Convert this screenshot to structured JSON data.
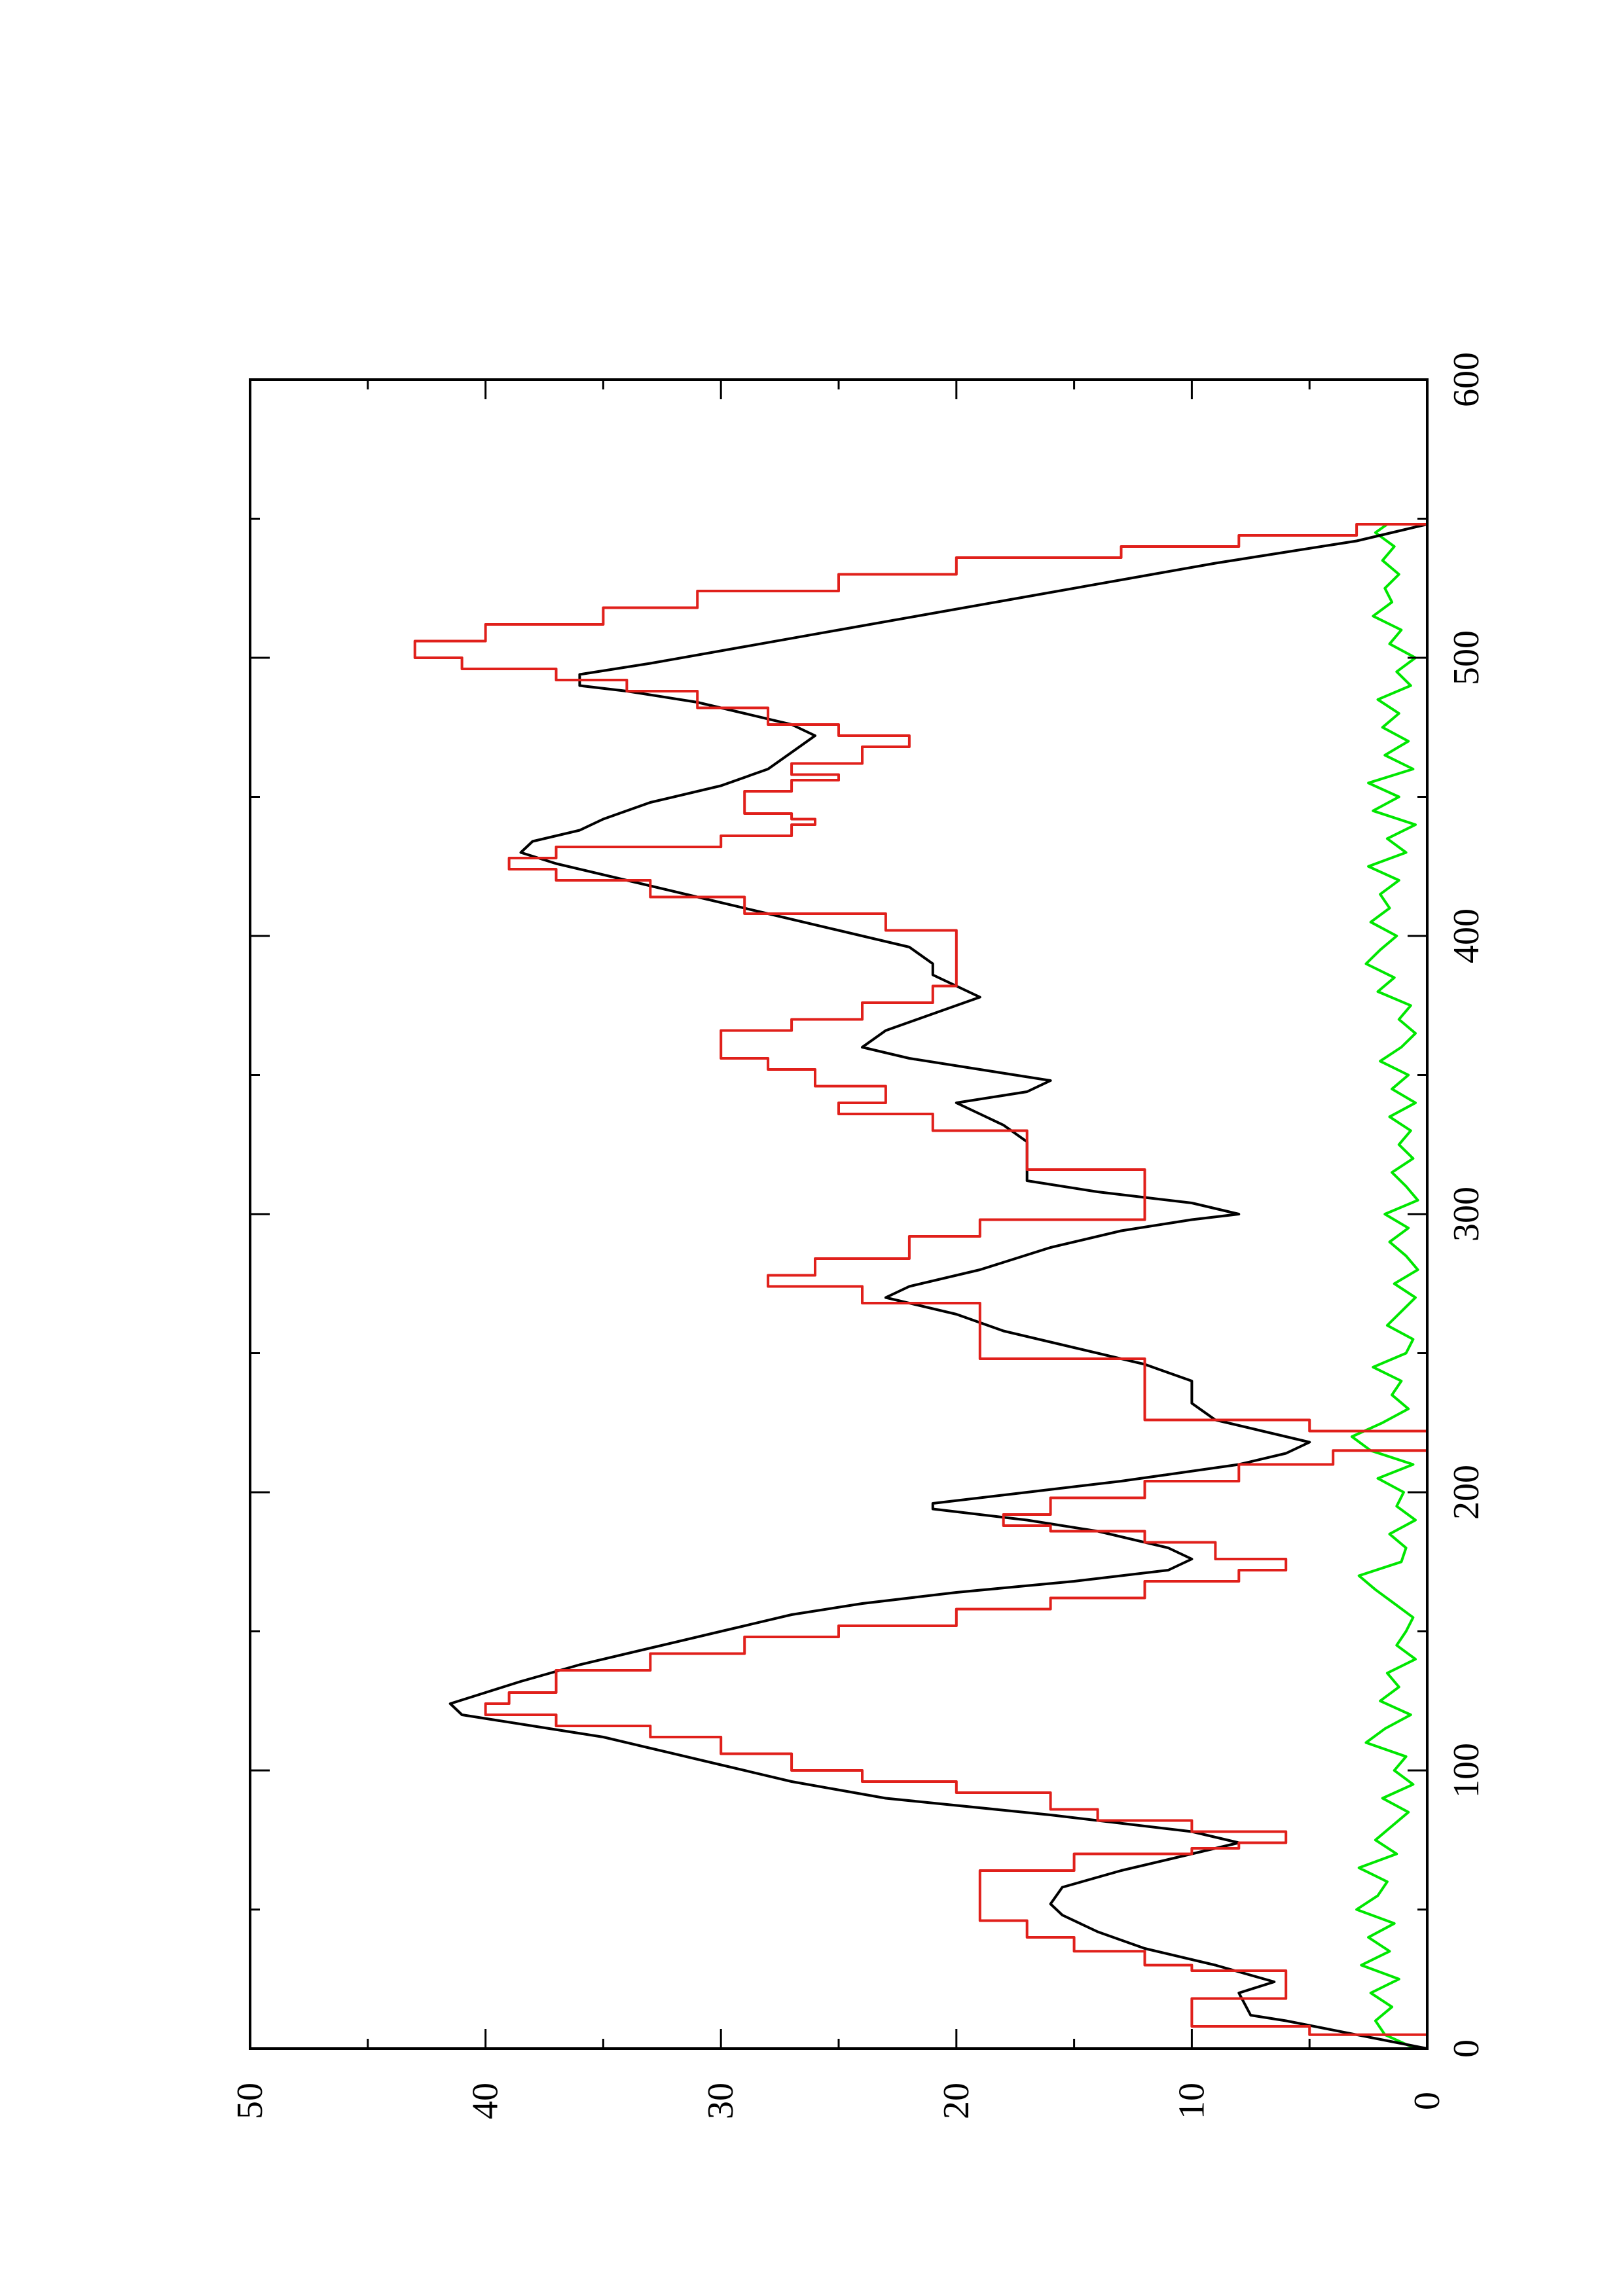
{
  "chart_data": {
    "type": "line",
    "orientation": "rotated-90-ccw",
    "title": "",
    "xlabel": "",
    "ylabel": "",
    "xlim": [
      0,
      600
    ],
    "ylim": [
      0,
      50
    ],
    "x_ticks": [
      0,
      100,
      200,
      300,
      400,
      500,
      600
    ],
    "x_tick_labels": [
      "0",
      "100",
      "200",
      "300",
      "400",
      "500",
      "600"
    ],
    "x_minor_ticks": [
      50,
      150,
      250,
      350,
      450,
      550
    ],
    "y_ticks": [
      0,
      10,
      20,
      30,
      40,
      50
    ],
    "y_tick_labels": [
      "0",
      "10",
      "20",
      "30",
      "40",
      "50"
    ],
    "y_minor_ticks": [
      5,
      15,
      25,
      35,
      45
    ],
    "grid": false,
    "legend": "none",
    "series": [
      {
        "color": "#000000",
        "style": "smooth",
        "points": [
          [
            0,
            0
          ],
          [
            5,
            3
          ],
          [
            10,
            6
          ],
          [
            12,
            7.5
          ],
          [
            20,
            8
          ],
          [
            24,
            6.5
          ],
          [
            30,
            9
          ],
          [
            36,
            12
          ],
          [
            42,
            14
          ],
          [
            48,
            15.5
          ],
          [
            52,
            16
          ],
          [
            58,
            15.5
          ],
          [
            64,
            13
          ],
          [
            70,
            10
          ],
          [
            74,
            8
          ],
          [
            78,
            10
          ],
          [
            84,
            16
          ],
          [
            90,
            23
          ],
          [
            96,
            27
          ],
          [
            102,
            30
          ],
          [
            108,
            33
          ],
          [
            112,
            35
          ],
          [
            116,
            38
          ],
          [
            120,
            41
          ],
          [
            124,
            41.5
          ],
          [
            128,
            40
          ],
          [
            132,
            38.5
          ],
          [
            138,
            36
          ],
          [
            144,
            33
          ],
          [
            150,
            30
          ],
          [
            156,
            27
          ],
          [
            160,
            24
          ],
          [
            164,
            20
          ],
          [
            168,
            15
          ],
          [
            172,
            11
          ],
          [
            176,
            10
          ],
          [
            180,
            11
          ],
          [
            186,
            14
          ],
          [
            190,
            17
          ],
          [
            194,
            21
          ],
          [
            196,
            21
          ],
          [
            200,
            17
          ],
          [
            204,
            13
          ],
          [
            210,
            8
          ],
          [
            214,
            6
          ],
          [
            218,
            5
          ],
          [
            222,
            7
          ],
          [
            226,
            9
          ],
          [
            232,
            10
          ],
          [
            240,
            10
          ],
          [
            246,
            12
          ],
          [
            252,
            15
          ],
          [
            258,
            18
          ],
          [
            264,
            20
          ],
          [
            270,
            23
          ],
          [
            274,
            22
          ],
          [
            280,
            19
          ],
          [
            288,
            16
          ],
          [
            294,
            13
          ],
          [
            298,
            10
          ],
          [
            300,
            8
          ],
          [
            304,
            10
          ],
          [
            308,
            14
          ],
          [
            312,
            17
          ],
          [
            320,
            17
          ],
          [
            326,
            17
          ],
          [
            332,
            18
          ],
          [
            336,
            19
          ],
          [
            340,
            20
          ],
          [
            344,
            17
          ],
          [
            348,
            16
          ],
          [
            352,
            19
          ],
          [
            356,
            22
          ],
          [
            360,
            24
          ],
          [
            366,
            23
          ],
          [
            372,
            21
          ],
          [
            378,
            19
          ],
          [
            382,
            20
          ],
          [
            386,
            21
          ],
          [
            390,
            21
          ],
          [
            396,
            22
          ],
          [
            402,
            25
          ],
          [
            408,
            28
          ],
          [
            414,
            31
          ],
          [
            420,
            34
          ],
          [
            426,
            37
          ],
          [
            430,
            38.5
          ],
          [
            434,
            38
          ],
          [
            438,
            36
          ],
          [
            442,
            35
          ],
          [
            448,
            33
          ],
          [
            454,
            30
          ],
          [
            460,
            28
          ],
          [
            466,
            27
          ],
          [
            472,
            26
          ],
          [
            476,
            27
          ],
          [
            480,
            29
          ],
          [
            484,
            31
          ],
          [
            488,
            34
          ],
          [
            490,
            36
          ],
          [
            494,
            36
          ],
          [
            498,
            33
          ],
          [
            504,
            29
          ],
          [
            510,
            25
          ],
          [
            516,
            21
          ],
          [
            522,
            17
          ],
          [
            528,
            13
          ],
          [
            534,
            9
          ],
          [
            538,
            6
          ],
          [
            542,
            3
          ],
          [
            546,
            1
          ],
          [
            548,
            0
          ]
        ]
      },
      {
        "color": "#e0201b",
        "style": "step",
        "points": [
          [
            0,
            0
          ],
          [
            5,
            5
          ],
          [
            8,
            10
          ],
          [
            15,
            10
          ],
          [
            18,
            6
          ],
          [
            25,
            6
          ],
          [
            28,
            10
          ],
          [
            30,
            12
          ],
          [
            35,
            15
          ],
          [
            40,
            17
          ],
          [
            46,
            19
          ],
          [
            60,
            19
          ],
          [
            64,
            15
          ],
          [
            70,
            10
          ],
          [
            72,
            8
          ],
          [
            74,
            6
          ],
          [
            78,
            10
          ],
          [
            82,
            14
          ],
          [
            86,
            16
          ],
          [
            92,
            20
          ],
          [
            96,
            24
          ],
          [
            100,
            27
          ],
          [
            106,
            30
          ],
          [
            112,
            33
          ],
          [
            116,
            37
          ],
          [
            120,
            40
          ],
          [
            124,
            39
          ],
          [
            128,
            37
          ],
          [
            136,
            33
          ],
          [
            142,
            29
          ],
          [
            148,
            25
          ],
          [
            152,
            20
          ],
          [
            158,
            16
          ],
          [
            162,
            12
          ],
          [
            168,
            8
          ],
          [
            172,
            6
          ],
          [
            176,
            9
          ],
          [
            182,
            12
          ],
          [
            186,
            16
          ],
          [
            188,
            18
          ],
          [
            192,
            16
          ],
          [
            198,
            12
          ],
          [
            204,
            8
          ],
          [
            210,
            4
          ],
          [
            215,
            0
          ],
          [
            218,
            0
          ],
          [
            222,
            5
          ],
          [
            226,
            12
          ],
          [
            240,
            12
          ],
          [
            248,
            19
          ],
          [
            262,
            19
          ],
          [
            268,
            24
          ],
          [
            274,
            28
          ],
          [
            278,
            26
          ],
          [
            284,
            22
          ],
          [
            292,
            19
          ],
          [
            298,
            12
          ],
          [
            312,
            12
          ],
          [
            316,
            17
          ],
          [
            326,
            17
          ],
          [
            330,
            21
          ],
          [
            336,
            25
          ],
          [
            340,
            23
          ],
          [
            346,
            26
          ],
          [
            352,
            28
          ],
          [
            356,
            30
          ],
          [
            360,
            30
          ],
          [
            366,
            27
          ],
          [
            370,
            24
          ],
          [
            376,
            21
          ],
          [
            382,
            20
          ],
          [
            396,
            20
          ],
          [
            402,
            23
          ],
          [
            408,
            29
          ],
          [
            414,
            33
          ],
          [
            420,
            37
          ],
          [
            424,
            39
          ],
          [
            428,
            37
          ],
          [
            432,
            30
          ],
          [
            436,
            27
          ],
          [
            440,
            26
          ],
          [
            442,
            27
          ],
          [
            444,
            29
          ],
          [
            448,
            29
          ],
          [
            452,
            27
          ],
          [
            456,
            25
          ],
          [
            458,
            27
          ],
          [
            462,
            24
          ],
          [
            468,
            22
          ],
          [
            472,
            25
          ],
          [
            476,
            28
          ],
          [
            482,
            31
          ],
          [
            488,
            34
          ],
          [
            492,
            37
          ],
          [
            496,
            41
          ],
          [
            500,
            43
          ],
          [
            506,
            40
          ],
          [
            512,
            35
          ],
          [
            518,
            31
          ],
          [
            524,
            25
          ],
          [
            530,
            20
          ],
          [
            536,
            13
          ],
          [
            540,
            8
          ],
          [
            544,
            3
          ],
          [
            548,
            0
          ]
        ]
      },
      {
        "color": "#00e600",
        "style": "noisy",
        "points": [
          [
            0,
            0.5
          ],
          [
            5,
            1.8
          ],
          [
            10,
            2.2
          ],
          [
            15,
            1.5
          ],
          [
            20,
            2.4
          ],
          [
            25,
            1.2
          ],
          [
            30,
            2.8
          ],
          [
            35,
            1.6
          ],
          [
            40,
            2.5
          ],
          [
            45,
            1.4
          ],
          [
            50,
            3.0
          ],
          [
            55,
            2.1
          ],
          [
            60,
            1.7
          ],
          [
            65,
            2.9
          ],
          [
            70,
            1.3
          ],
          [
            75,
            2.2
          ],
          [
            80,
            1.5
          ],
          [
            85,
            0.8
          ],
          [
            90,
            1.9
          ],
          [
            95,
            0.6
          ],
          [
            100,
            1.4
          ],
          [
            105,
            0.9
          ],
          [
            110,
            2.6
          ],
          [
            115,
            1.8
          ],
          [
            120,
            0.7
          ],
          [
            125,
            2.0
          ],
          [
            130,
            1.2
          ],
          [
            135,
            1.7
          ],
          [
            140,
            0.5
          ],
          [
            145,
            1.3
          ],
          [
            150,
            0.9
          ],
          [
            155,
            0.6
          ],
          [
            160,
            1.4
          ],
          [
            165,
            2.2
          ],
          [
            170,
            2.9
          ],
          [
            175,
            1.1
          ],
          [
            180,
            0.9
          ],
          [
            185,
            1.6
          ],
          [
            190,
            0.5
          ],
          [
            195,
            1.3
          ],
          [
            200,
            1.0
          ],
          [
            205,
            2.1
          ],
          [
            210,
            0.6
          ],
          [
            215,
            2.4
          ],
          [
            220,
            3.2
          ],
          [
            225,
            1.9
          ],
          [
            230,
            0.8
          ],
          [
            235,
            1.5
          ],
          [
            240,
            1.1
          ],
          [
            245,
            2.3
          ],
          [
            250,
            0.9
          ],
          [
            255,
            0.6
          ],
          [
            260,
            1.7
          ],
          [
            265,
            1.1
          ],
          [
            270,
            0.5
          ],
          [
            275,
            1.4
          ],
          [
            280,
            0.4
          ],
          [
            285,
            0.9
          ],
          [
            290,
            1.6
          ],
          [
            295,
            0.8
          ],
          [
            300,
            1.8
          ],
          [
            305,
            0.4
          ],
          [
            310,
            0.9
          ],
          [
            315,
            1.5
          ],
          [
            320,
            0.6
          ],
          [
            325,
            1.2
          ],
          [
            330,
            0.7
          ],
          [
            335,
            1.6
          ],
          [
            340,
            0.5
          ],
          [
            345,
            1.5
          ],
          [
            350,
            0.8
          ],
          [
            355,
            2.0
          ],
          [
            360,
            1.1
          ],
          [
            365,
            0.5
          ],
          [
            370,
            1.2
          ],
          [
            375,
            0.7
          ],
          [
            380,
            2.1
          ],
          [
            385,
            1.4
          ],
          [
            390,
            2.6
          ],
          [
            395,
            2.0
          ],
          [
            400,
            1.3
          ],
          [
            405,
            2.4
          ],
          [
            410,
            1.6
          ],
          [
            415,
            2.0
          ],
          [
            420,
            1.2
          ],
          [
            425,
            2.5
          ],
          [
            430,
            0.9
          ],
          [
            435,
            1.7
          ],
          [
            440,
            0.5
          ],
          [
            445,
            2.3
          ],
          [
            450,
            1.2
          ],
          [
            455,
            2.5
          ],
          [
            460,
            0.6
          ],
          [
            465,
            1.8
          ],
          [
            470,
            0.8
          ],
          [
            475,
            1.9
          ],
          [
            480,
            1.2
          ],
          [
            485,
            2.1
          ],
          [
            490,
            0.7
          ],
          [
            495,
            1.3
          ],
          [
            500,
            0.5
          ],
          [
            505,
            1.6
          ],
          [
            510,
            1.1
          ],
          [
            515,
            2.3
          ],
          [
            520,
            1.5
          ],
          [
            525,
            1.8
          ],
          [
            530,
            1.2
          ],
          [
            535,
            1.9
          ],
          [
            540,
            1.4
          ],
          [
            545,
            2.2
          ],
          [
            548,
            1.7
          ]
        ]
      }
    ]
  }
}
